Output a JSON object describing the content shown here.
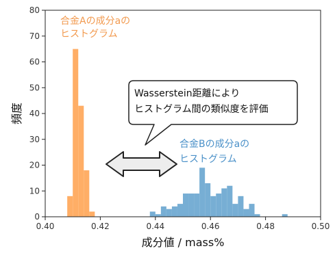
{
  "chart_data": {
    "type": "bar",
    "xlabel": "成分値 / mass%",
    "ylabel": "頻度",
    "xlim": [
      0.4,
      0.5
    ],
    "ylim": [
      0,
      80
    ],
    "bin_width": 0.002,
    "xticks": [
      "0.40",
      "0.42",
      "0.44",
      "0.46",
      "0.48",
      "0.50"
    ],
    "yticks": [
      "0",
      "10",
      "20",
      "30",
      "40",
      "50",
      "60",
      "70",
      "80"
    ],
    "grid": false,
    "series": [
      {
        "color": "#ffae66",
        "bins": [
          {
            "x": 0.408,
            "y": 8
          },
          {
            "x": 0.41,
            "y": 65
          },
          {
            "x": 0.412,
            "y": 43
          },
          {
            "x": 0.414,
            "y": 18
          },
          {
            "x": 0.416,
            "y": 2
          }
        ]
      },
      {
        "color": "#77aed4",
        "bins": [
          {
            "x": 0.438,
            "y": 2
          },
          {
            "x": 0.44,
            "y": 1
          },
          {
            "x": 0.442,
            "y": 4
          },
          {
            "x": 0.444,
            "y": 3
          },
          {
            "x": 0.446,
            "y": 4
          },
          {
            "x": 0.448,
            "y": 5
          },
          {
            "x": 0.45,
            "y": 9
          },
          {
            "x": 0.452,
            "y": 9
          },
          {
            "x": 0.454,
            "y": 9
          },
          {
            "x": 0.456,
            "y": 19
          },
          {
            "x": 0.458,
            "y": 13
          },
          {
            "x": 0.46,
            "y": 8
          },
          {
            "x": 0.462,
            "y": 9
          },
          {
            "x": 0.464,
            "y": 11
          },
          {
            "x": 0.466,
            "y": 12
          },
          {
            "x": 0.468,
            "y": 5
          },
          {
            "x": 0.47,
            "y": 8
          },
          {
            "x": 0.472,
            "y": 3
          },
          {
            "x": 0.474,
            "y": 5
          },
          {
            "x": 0.476,
            "y": 1
          },
          {
            "x": 0.478,
            "y": 0
          },
          {
            "x": 0.48,
            "y": 0
          },
          {
            "x": 0.482,
            "y": 0
          },
          {
            "x": 0.484,
            "y": 0
          },
          {
            "x": 0.486,
            "y": 1
          }
        ]
      }
    ],
    "annotations": {
      "a_line1": "合金Aの成分aの",
      "a_line2": "ヒストグラム",
      "b_line1": "合金Bの成分aの",
      "b_line2": "ヒストグラム",
      "callout_line1": "Wasserstein距離により",
      "callout_line2": "ヒストグラム間の類似度を評価"
    }
  }
}
